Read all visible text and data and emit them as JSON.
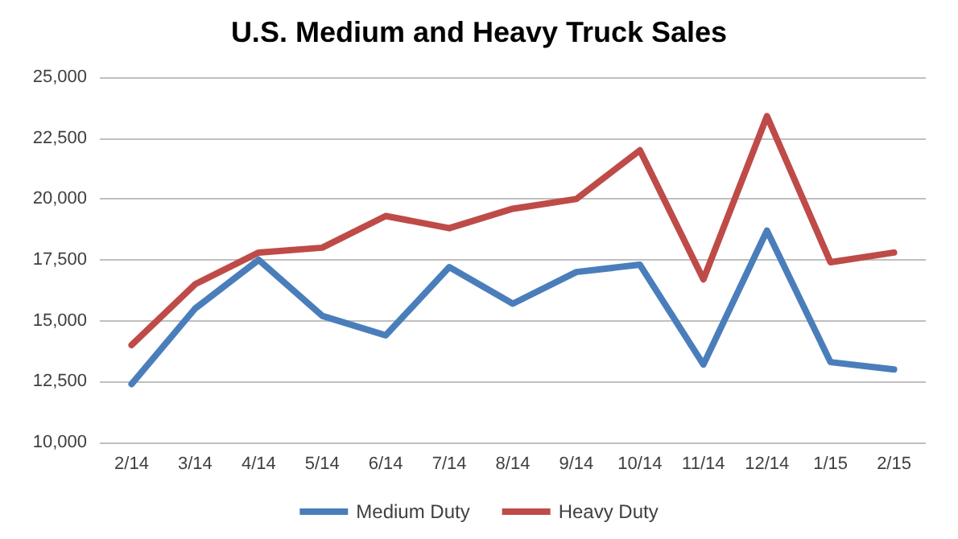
{
  "chart_data": {
    "type": "line",
    "title": "U.S. Medium and Heavy Truck Sales",
    "categories": [
      "2/14",
      "3/14",
      "4/14",
      "5/14",
      "6/14",
      "7/14",
      "8/14",
      "9/14",
      "10/14",
      "11/14",
      "12/14",
      "1/15",
      "2/15"
    ],
    "series": [
      {
        "name": "Medium Duty",
        "color": "#4a7ebb",
        "values": [
          12400,
          15500,
          17500,
          15200,
          14400,
          17200,
          15700,
          17000,
          17300,
          13200,
          18700,
          13300,
          13000
        ]
      },
      {
        "name": "Heavy Duty",
        "color": "#be4b48",
        "values": [
          14000,
          16500,
          17800,
          18000,
          19300,
          18800,
          19600,
          20000,
          22000,
          16700,
          23400,
          17400,
          17800
        ]
      }
    ],
    "ylim": [
      10000,
      25000
    ],
    "yticks": [
      {
        "value": 10000,
        "label": "10,000"
      },
      {
        "value": 12500,
        "label": "12,500"
      },
      {
        "value": 15000,
        "label": "15,000"
      },
      {
        "value": 17500,
        "label": "17,500"
      },
      {
        "value": 20000,
        "label": "20,000"
      },
      {
        "value": 22500,
        "label": "22,500"
      },
      {
        "value": 25000,
        "label": "25,000"
      }
    ],
    "grid": "y",
    "legend": "bottom",
    "marker": "none",
    "line_style": "solid"
  }
}
